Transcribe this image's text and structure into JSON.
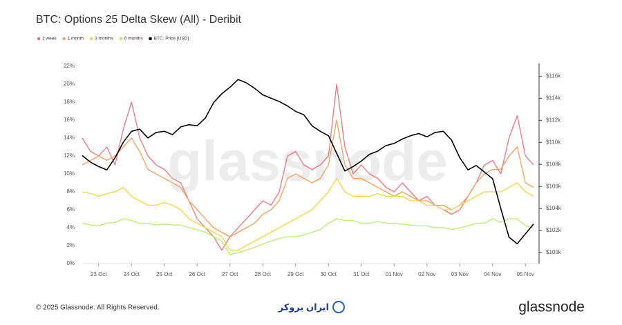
{
  "chart_data": {
    "type": "line",
    "title": "BTC: Options 25 Delta Skew (All) - Deribit",
    "categories": [
      null,
      null,
      "23 Oct",
      null,
      null,
      null,
      "24 Oct",
      null,
      null,
      null,
      "25 Oct",
      null,
      null,
      null,
      "26 Oct",
      null,
      null,
      null,
      "27 Oct",
      null,
      null,
      null,
      "28 Oct",
      null,
      null,
      null,
      "29 Oct",
      null,
      null,
      null,
      "30 Oct",
      null,
      null,
      null,
      "31 Oct",
      null,
      null,
      null,
      "01 Nov",
      null,
      null,
      null,
      "02 Nov",
      null,
      null,
      null,
      "03 Nov",
      null,
      null,
      null,
      "04 Nov",
      null,
      null,
      null,
      "05 Nov",
      null
    ],
    "series": [
      {
        "name": "1 week",
        "color": "#f0737f",
        "values": [
          14,
          12.5,
          12,
          13,
          11,
          15,
          18,
          14,
          12,
          11,
          10.5,
          9.5,
          9,
          7,
          5,
          4,
          3,
          1.5,
          3,
          4,
          5,
          6,
          7,
          6.5,
          8,
          12,
          12.5,
          11,
          10.5,
          11,
          12,
          20,
          13,
          10,
          11,
          10,
          9.5,
          8.5,
          8,
          9,
          8,
          7,
          7.5,
          6.5,
          6,
          5.5,
          6,
          7.5,
          9,
          11,
          11.5,
          10,
          14,
          16.5,
          12,
          11
        ]
      },
      {
        "name": "1 month",
        "color": "#f5a05a",
        "values": [
          11,
          11.5,
          12,
          11.5,
          12,
          13,
          14,
          12.5,
          10.5,
          10,
          9.5,
          9,
          8.5,
          7,
          6,
          5,
          4,
          3.5,
          3,
          3.5,
          4,
          4.5,
          5.5,
          6,
          7,
          9.5,
          10,
          9.5,
          9,
          9.5,
          11,
          16,
          11,
          9.5,
          9.5,
          9,
          8.5,
          8,
          7.5,
          8,
          7.5,
          7,
          7,
          6.5,
          6.5,
          6,
          6.5,
          7.5,
          9,
          10,
          10.5,
          10.5,
          12,
          13,
          9,
          8.5
        ]
      },
      {
        "name": "3 months",
        "color": "#f5d43c",
        "values": [
          8,
          7.8,
          7.5,
          7.8,
          8,
          8.5,
          7.5,
          7,
          6.5,
          6.5,
          6.8,
          6.5,
          6,
          5,
          4.5,
          4,
          3.5,
          3,
          1.5,
          1.5,
          2,
          2.5,
          3,
          3.5,
          4,
          4.5,
          5,
          5.5,
          6,
          7,
          8,
          9.5,
          8,
          7.5,
          7.5,
          7.5,
          7.8,
          7.5,
          7.5,
          7.5,
          7,
          7,
          6.5,
          6.5,
          6,
          6,
          6.5,
          7,
          7.5,
          8,
          8,
          8,
          8.5,
          9,
          8,
          7.5
        ]
      },
      {
        "name": "6 months",
        "color": "#b5ee6a",
        "values": [
          4.5,
          4.3,
          4.2,
          4.5,
          4.6,
          5,
          4.8,
          4.5,
          4.5,
          4.3,
          4.4,
          4.3,
          4.3,
          4,
          3.8,
          3.5,
          3,
          2.5,
          1,
          1.2,
          1.5,
          1.8,
          2.2,
          2.5,
          2.8,
          3,
          3,
          3.2,
          3.5,
          3.8,
          4.5,
          5,
          4.8,
          4.8,
          4.5,
          4.5,
          4.7,
          4.5,
          4.5,
          4.4,
          4.3,
          4.2,
          4.2,
          4,
          4,
          3.8,
          4,
          4.2,
          4.5,
          4.5,
          5,
          4.6,
          5,
          5,
          4.2,
          4
        ]
      },
      {
        "name": "BTC: Price [USD]",
        "color": "#000000",
        "axis": "y2",
        "values": [
          108800,
          108200,
          107800,
          107500,
          108600,
          110000,
          111000,
          111200,
          110400,
          110900,
          111000,
          110700,
          111400,
          111600,
          111500,
          112200,
          113600,
          114400,
          115000,
          115700,
          115400,
          114900,
          114300,
          114000,
          113700,
          113300,
          112800,
          112500,
          111500,
          111000,
          110600,
          109000,
          107400,
          107800,
          108300,
          108900,
          109200,
          109700,
          109900,
          110300,
          110600,
          110800,
          110500,
          110900,
          111000,
          110200,
          108600,
          107500,
          107900,
          107300,
          106700,
          104000,
          101400,
          100800,
          101700,
          102600
        ]
      }
    ],
    "ylim": [
      0,
      22
    ],
    "yticks": [
      {
        "value": 0,
        "label": "0%"
      },
      {
        "value": 2,
        "label": "2%"
      },
      {
        "value": 4,
        "label": "4%"
      },
      {
        "value": 6,
        "label": "6%"
      },
      {
        "value": 8,
        "label": "8%"
      },
      {
        "value": 10,
        "label": "10%"
      },
      {
        "value": 12,
        "label": "12%"
      },
      {
        "value": 14,
        "label": "14%"
      },
      {
        "value": 16,
        "label": "16%"
      },
      {
        "value": 18,
        "label": "18%"
      },
      {
        "value": 20,
        "label": "20%"
      },
      {
        "value": 22,
        "label": "22%"
      }
    ],
    "y2lim": [
      99000,
      116900
    ],
    "y2ticks": [
      {
        "value": 100000,
        "label": "$100k"
      },
      {
        "value": 102000,
        "label": "$102k"
      },
      {
        "value": 104000,
        "label": "$104k"
      },
      {
        "value": 106000,
        "label": "$106k"
      },
      {
        "value": 108000,
        "label": "$108k"
      },
      {
        "value": 110000,
        "label": "$110k"
      },
      {
        "value": 112000,
        "label": "$112k"
      },
      {
        "value": 114000,
        "label": "$114k"
      },
      {
        "value": 116000,
        "label": "$116k"
      }
    ],
    "grid": false,
    "legend": "top-left"
  },
  "watermark": "glassnode",
  "footer": {
    "copyright": "© 2025 Glassnode. All Rights Reserved.",
    "partner": "ایران بروکر",
    "brand": "glassnode"
  }
}
